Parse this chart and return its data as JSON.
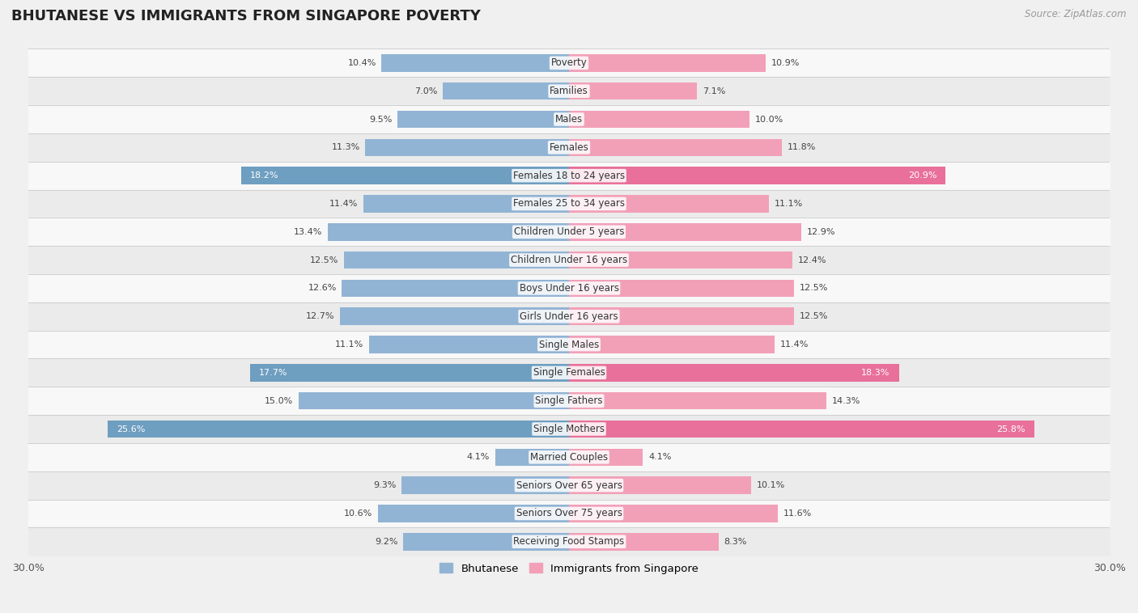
{
  "title": "BHUTANESE VS IMMIGRANTS FROM SINGAPORE POVERTY",
  "source": "Source: ZipAtlas.com",
  "categories": [
    "Poverty",
    "Families",
    "Males",
    "Females",
    "Females 18 to 24 years",
    "Females 25 to 34 years",
    "Children Under 5 years",
    "Children Under 16 years",
    "Boys Under 16 years",
    "Girls Under 16 years",
    "Single Males",
    "Single Females",
    "Single Fathers",
    "Single Mothers",
    "Married Couples",
    "Seniors Over 65 years",
    "Seniors Over 75 years",
    "Receiving Food Stamps"
  ],
  "bhutanese": [
    10.4,
    7.0,
    9.5,
    11.3,
    18.2,
    11.4,
    13.4,
    12.5,
    12.6,
    12.7,
    11.1,
    17.7,
    15.0,
    25.6,
    4.1,
    9.3,
    10.6,
    9.2
  ],
  "singapore": [
    10.9,
    7.1,
    10.0,
    11.8,
    20.9,
    11.1,
    12.9,
    12.4,
    12.5,
    12.5,
    11.4,
    18.3,
    14.3,
    25.8,
    4.1,
    10.1,
    11.6,
    8.3
  ],
  "blue_color": "#92b4d4",
  "pink_color": "#f2a0b8",
  "blue_highlight_color": "#6e9ec0",
  "pink_highlight_color": "#e8709a",
  "bg_color": "#f0f0f0",
  "row_light_color": "#f8f8f8",
  "row_dark_color": "#e8e8e8",
  "axis_max": 30.0,
  "legend_blue_label": "Bhutanese",
  "legend_pink_label": "Immigrants from Singapore",
  "highlight_rows": [
    4,
    11,
    13
  ],
  "medium_rows": [
    3,
    6,
    12
  ]
}
